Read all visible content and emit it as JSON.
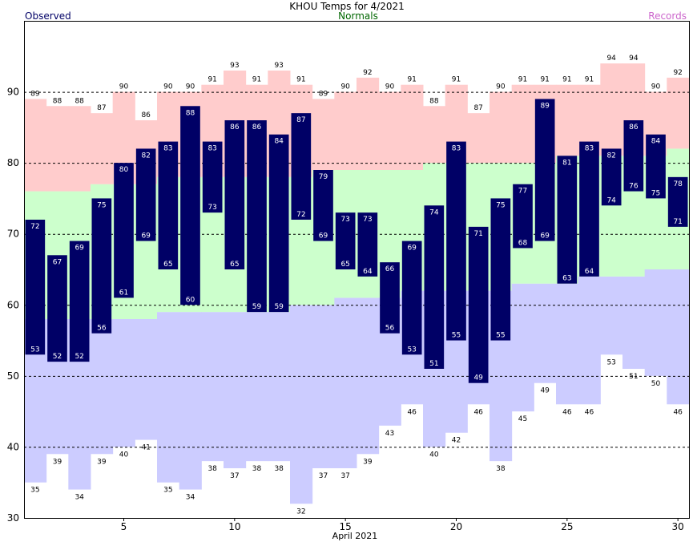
{
  "chart_data": {
    "type": "bar",
    "title": "KHOU Temps for 4/2021",
    "xlabel": "April 2021",
    "ylabel": "",
    "legend": {
      "observed": "Observed",
      "normals": "Normals",
      "records": "Records"
    },
    "colors": {
      "observed": "#000066",
      "normals_label": "#006600",
      "records_label": "#cc66cc",
      "normal_band": "#ccffcc",
      "record_high_band": "#ffcccc",
      "record_low_band": "#ccccff"
    },
    "ylim": [
      30,
      100
    ],
    "yticks": [
      30,
      40,
      50,
      60,
      70,
      80,
      90
    ],
    "dashed_gridlines": [
      40,
      50,
      60,
      70,
      80,
      90
    ],
    "xticks": [
      5,
      10,
      15,
      20,
      25,
      30
    ],
    "days": [
      1,
      2,
      3,
      4,
      5,
      6,
      7,
      8,
      9,
      10,
      11,
      12,
      13,
      14,
      15,
      16,
      17,
      18,
      19,
      20,
      21,
      22,
      23,
      24,
      25,
      26,
      27,
      28,
      29,
      30
    ],
    "observed_high": [
      72,
      67,
      69,
      75,
      80,
      82,
      83,
      88,
      83,
      86,
      86,
      84,
      87,
      79,
      73,
      73,
      66,
      69,
      74,
      83,
      71,
      75,
      77,
      89,
      81,
      83,
      82,
      86,
      84,
      78
    ],
    "observed_low": [
      53,
      52,
      52,
      56,
      61,
      69,
      65,
      60,
      73,
      65,
      59,
      59,
      72,
      69,
      65,
      64,
      56,
      53,
      51,
      55,
      49,
      55,
      68,
      69,
      63,
      64,
      74,
      76,
      75,
      71
    ],
    "normal_high": [
      76,
      76,
      76,
      77,
      77,
      77,
      78,
      78,
      78,
      78,
      78,
      78,
      78,
      79,
      79,
      79,
      79,
      79,
      80,
      80,
      80,
      80,
      80,
      80,
      81,
      81,
      81,
      81,
      81,
      82
    ],
    "normal_low": [
      58,
      58,
      58,
      58,
      58,
      58,
      59,
      59,
      59,
      59,
      59,
      59,
      60,
      60,
      61,
      61,
      61,
      62,
      62,
      62,
      62,
      62,
      63,
      63,
      63,
      64,
      64,
      64,
      65,
      65
    ],
    "record_high": [
      89,
      88,
      88,
      87,
      90,
      86,
      90,
      90,
      91,
      93,
      91,
      93,
      91,
      89,
      90,
      92,
      90,
      91,
      88,
      91,
      87,
      90,
      91,
      91,
      91,
      91,
      94,
      94,
      90,
      92
    ],
    "record_low": [
      35,
      39,
      34,
      39,
      40,
      41,
      35,
      34,
      38,
      37,
      38,
      38,
      32,
      37,
      37,
      39,
      43,
      46,
      40,
      42,
      46,
      38,
      45,
      49,
      46,
      46,
      53,
      51,
      50,
      46
    ]
  }
}
